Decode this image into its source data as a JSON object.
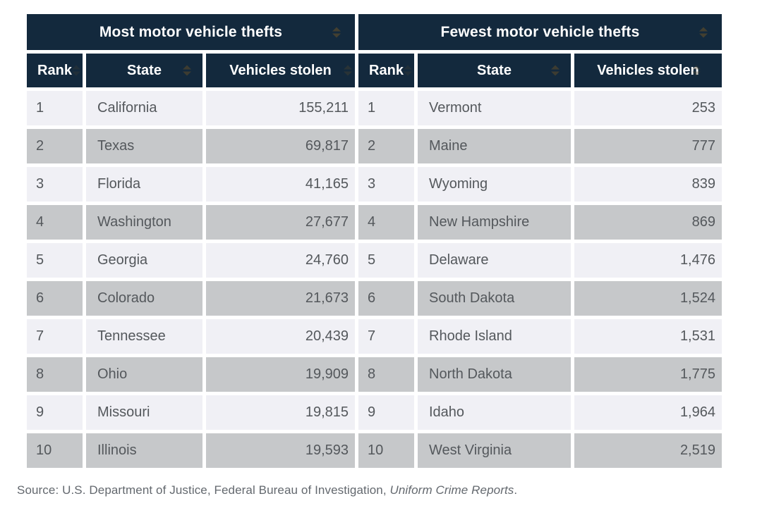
{
  "colors": {
    "header_bg": "#13293d",
    "header_text": "#ffffff",
    "row_light": "#f0f0f5",
    "row_dark": "#c6c8ca",
    "cell_text": "#54585c",
    "source_text": "#63686e",
    "sort_icon": "#4c432e",
    "page_bg": "#ffffff"
  },
  "icons": {
    "sort": "sort-up-down-arrows"
  },
  "chart_data": [
    {
      "type": "table",
      "title": "Most motor vehicle thefts",
      "columns": [
        "Rank",
        "State",
        "Vehicles stolen"
      ],
      "rows": [
        [
          "1",
          "California",
          "155,211"
        ],
        [
          "2",
          "Texas",
          "69,817"
        ],
        [
          "3",
          "Florida",
          "41,165"
        ],
        [
          "4",
          "Washington",
          "27,677"
        ],
        [
          "5",
          "Georgia",
          "24,760"
        ],
        [
          "6",
          "Colorado",
          "21,673"
        ],
        [
          "7",
          "Tennessee",
          "20,439"
        ],
        [
          "8",
          "Ohio",
          "19,909"
        ],
        [
          "9",
          "Missouri",
          "19,815"
        ],
        [
          "10",
          "Illinois",
          "19,593"
        ]
      ]
    },
    {
      "type": "table",
      "title": "Fewest motor vehicle thefts",
      "columns": [
        "Rank",
        "State",
        "Vehicles stolen"
      ],
      "rows": [
        [
          "1",
          "Vermont",
          "253"
        ],
        [
          "2",
          "Maine",
          "777"
        ],
        [
          "3",
          "Wyoming",
          "839"
        ],
        [
          "4",
          "New Hampshire",
          "869"
        ],
        [
          "5",
          "Delaware",
          "1,476"
        ],
        [
          "6",
          "South Dakota",
          "1,524"
        ],
        [
          "7",
          "Rhode Island",
          "1,531"
        ],
        [
          "8",
          "North Dakota",
          "1,775"
        ],
        [
          "9",
          "Idaho",
          "1,964"
        ],
        [
          "10",
          "West Virginia",
          "2,519"
        ]
      ]
    }
  ],
  "source": {
    "prefix": "Source: U.S. Department of Justice, Federal Bureau of Investigation, ",
    "italic": "Uniform Crime Reports",
    "suffix": "."
  }
}
